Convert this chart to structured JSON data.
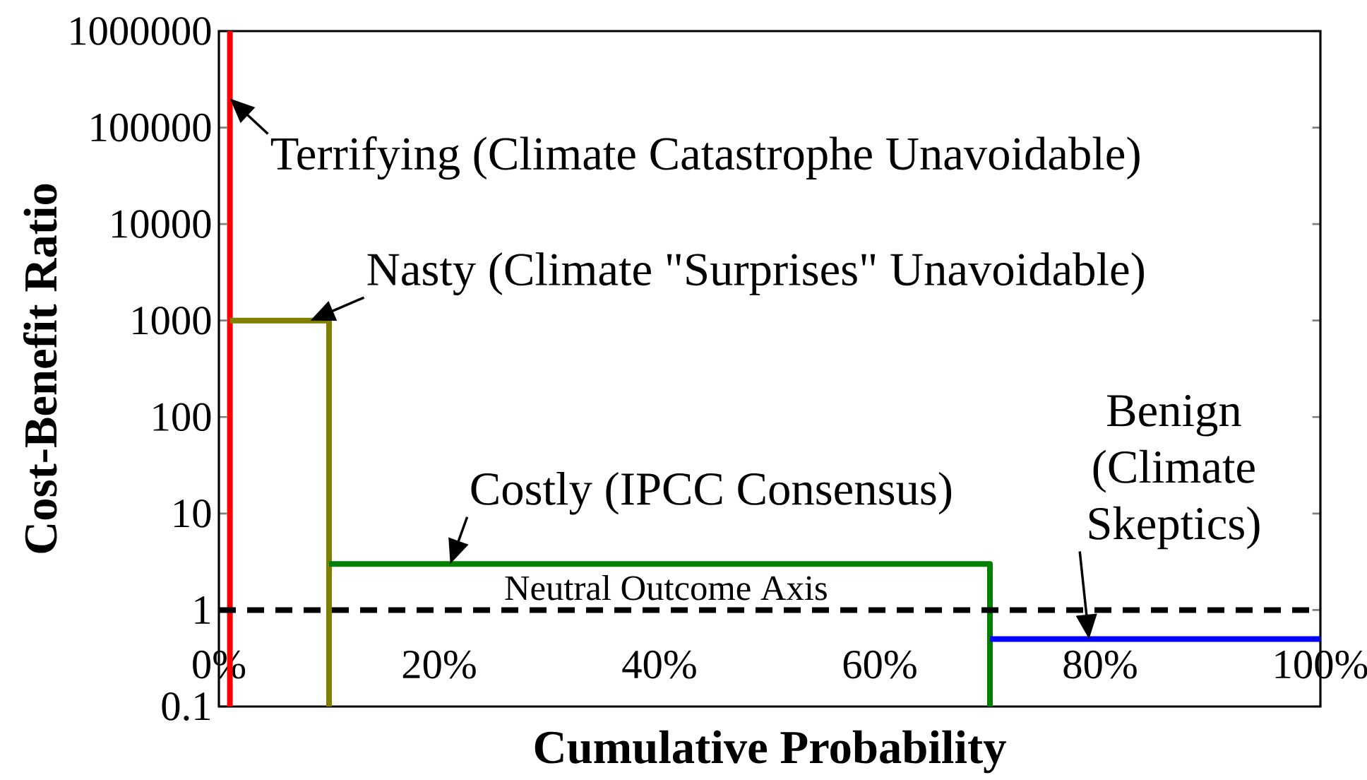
{
  "chart_data": {
    "type": "line",
    "xlabel": "Cumulative Probability",
    "ylabel": "Cost-Benefit Ratio",
    "log": "y",
    "xlim": [
      0,
      100
    ],
    "ylim": [
      0.1,
      1000000
    ],
    "xticks": [
      {
        "value": 0,
        "label": "0%"
      },
      {
        "value": 20,
        "label": "20%"
      },
      {
        "value": 40,
        "label": "40%"
      },
      {
        "value": 60,
        "label": "60%"
      },
      {
        "value": 80,
        "label": "80%"
      },
      {
        "value": 100,
        "label": "100%"
      }
    ],
    "yticks": [
      0.1,
      1,
      10,
      100,
      1000,
      10000,
      100000,
      1000000
    ],
    "series": [
      {
        "color": "#ff0000",
        "x": [
          1,
          1
        ],
        "values": [
          0.1,
          1000000
        ]
      },
      {
        "color": "#808000",
        "x": [
          1,
          10,
          10
        ],
        "values": [
          1000,
          1000,
          0.1
        ]
      },
      {
        "color": "#008000",
        "x": [
          10,
          70,
          70
        ],
        "values": [
          3,
          3,
          0.1
        ]
      },
      {
        "color": "#0000ff",
        "x": [
          70,
          100
        ],
        "values": [
          0.5,
          0.5
        ]
      }
    ],
    "ref_lines": [
      {
        "axis": "y",
        "value": 1,
        "label": "Neutral Outcome Axis",
        "color": "#000000",
        "line_style": "dashed"
      }
    ],
    "annotations": [
      {
        "text": "Terrifying (Climate Catastrophe Unavoidable)",
        "x": 1,
        "y": 200000
      },
      {
        "text": "Nasty (Climate \"Surprises\" Unavoidable)",
        "x": 8.3,
        "y": 1000
      },
      {
        "text": "Costly (IPCC Consensus)",
        "x": 21,
        "y": 3
      },
      {
        "text": "Benign (Climate Skeptics)",
        "x": 79,
        "y": 0.5
      }
    ]
  }
}
